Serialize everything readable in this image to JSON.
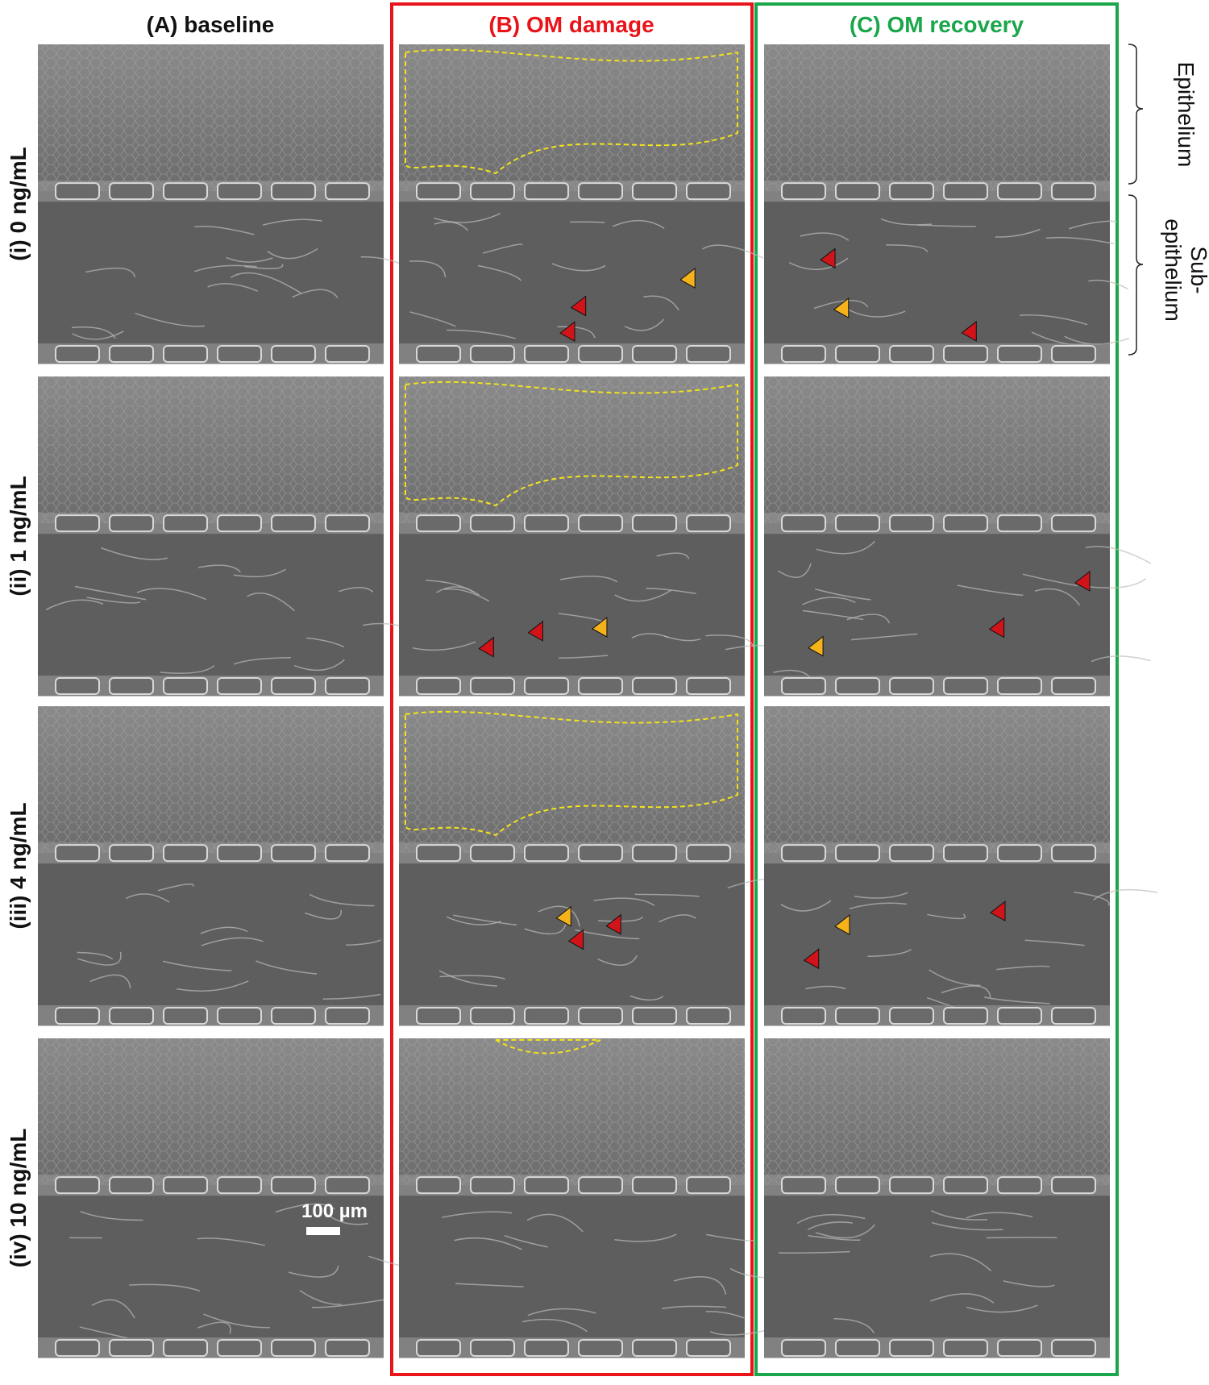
{
  "columns": [
    "(A) baseline",
    "(B) OM damage",
    "(C) OM recovery"
  ],
  "rows": [
    "(i) 0 ng/mL",
    "(ii) 1 ng/mL",
    "(iii) 4 ng/mL",
    "(iv) 10 ng/mL"
  ],
  "region_labels": {
    "epithelium": "Epithelium",
    "sub_epithelium": [
      "Sub-",
      "epithelium"
    ]
  },
  "scale_bar": "100 µm"
}
